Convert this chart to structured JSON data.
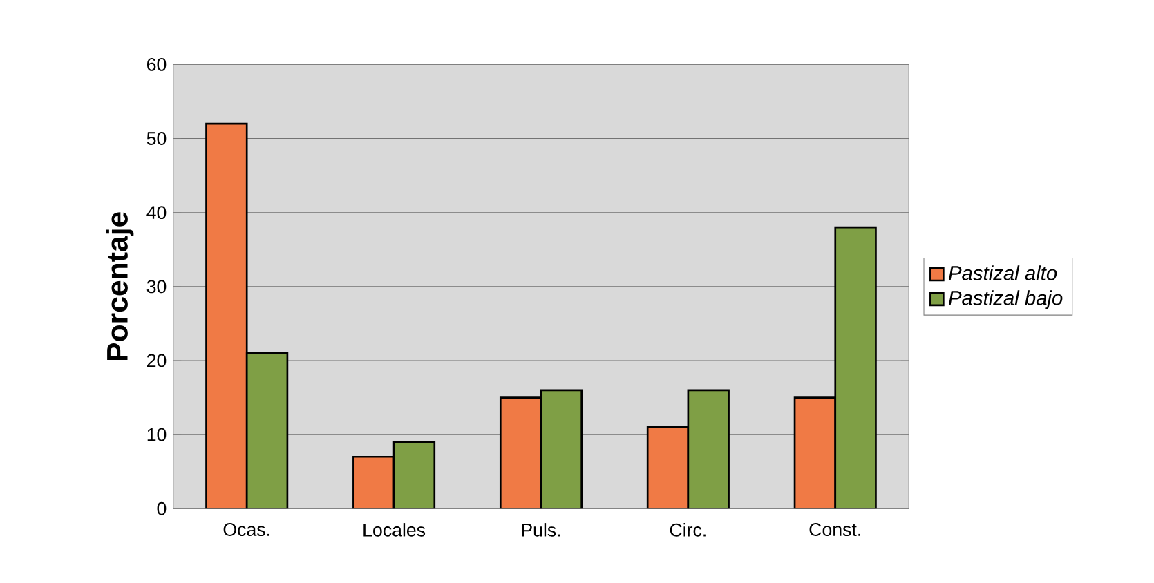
{
  "chart_data": {
    "type": "bar",
    "ylabel": "Porcentaje",
    "categories": [
      "Ocas.",
      "Locales",
      "Puls.",
      "Circ.",
      "Const."
    ],
    "series": [
      {
        "name": "Pastizal alto",
        "color": "#f07a45",
        "values": [
          52,
          7,
          15,
          11,
          15
        ]
      },
      {
        "name": "Pastizal bajo",
        "color": "#7f9f45",
        "values": [
          21,
          9,
          16,
          16,
          38
        ]
      }
    ],
    "ylim": [
      0,
      60
    ],
    "yticks": [
      0,
      10,
      20,
      30,
      40,
      50,
      60
    ],
    "grid": "y",
    "legend": "right"
  }
}
